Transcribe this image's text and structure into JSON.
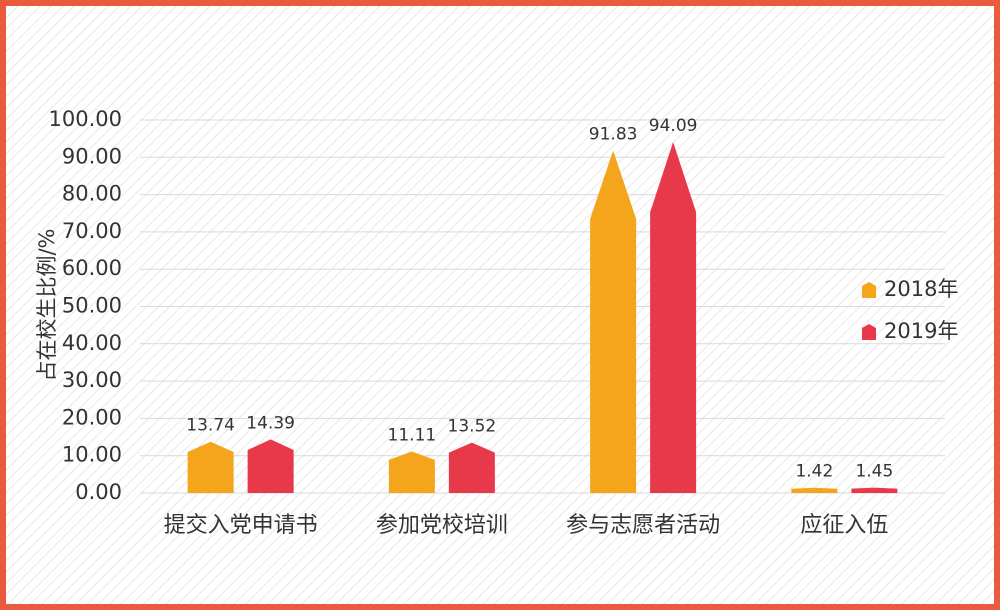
{
  "chart_data": {
    "type": "bar",
    "ylabel": "占在校生比例/%",
    "categories": [
      "提交入党申请书",
      "参加党校培训",
      "参与志愿者活动",
      "应征入伍"
    ],
    "series": [
      {
        "name": "2018年",
        "color": "#f5a51c",
        "values": [
          13.74,
          11.11,
          91.83,
          1.42
        ]
      },
      {
        "name": "2019年",
        "color": "#e8394a",
        "values": [
          14.39,
          13.52,
          94.09,
          1.45
        ]
      }
    ],
    "ylim": [
      0,
      100
    ],
    "yticks": [
      {
        "value": 0,
        "label": "0.00"
      },
      {
        "value": 10,
        "label": "10.00"
      },
      {
        "value": 20,
        "label": "20.00"
      },
      {
        "value": 30,
        "label": "30.00"
      },
      {
        "value": 40,
        "label": "40.00"
      },
      {
        "value": 50,
        "label": "50.00"
      },
      {
        "value": 60,
        "label": "60.00"
      },
      {
        "value": 70,
        "label": "70.00"
      },
      {
        "value": 80,
        "label": "80.00"
      },
      {
        "value": 90,
        "label": "90.00"
      },
      {
        "value": 100,
        "label": "100.00"
      }
    ],
    "grid": true,
    "legend": "right"
  }
}
